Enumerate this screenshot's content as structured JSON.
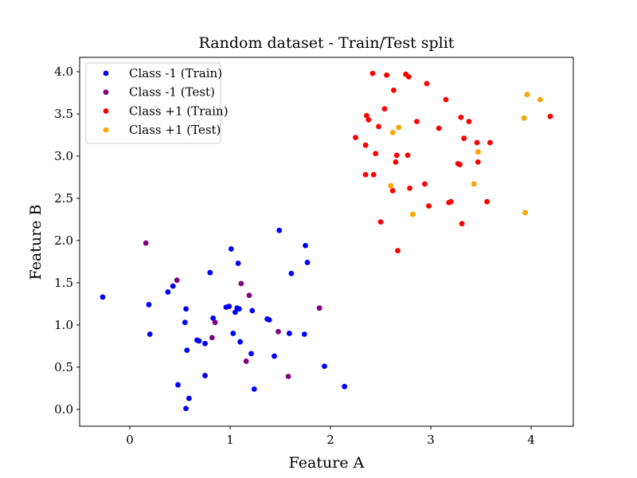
{
  "chart_data": {
    "type": "scatter",
    "title": "Random dataset - Train/Test split",
    "xlabel": "Feature A",
    "ylabel": "Feature B",
    "xlim": [
      -0.5,
      4.42
    ],
    "ylim": [
      -0.2,
      4.17
    ],
    "xticks": [
      0,
      1,
      2,
      3,
      4
    ],
    "xtick_labels": [
      "0",
      "1",
      "2",
      "3",
      "4"
    ],
    "yticks": [
      0.0,
      0.5,
      1.0,
      1.5,
      2.0,
      2.5,
      3.0,
      3.5,
      4.0
    ],
    "ytick_labels": [
      "0.0",
      "0.5",
      "1.0",
      "1.5",
      "2.0",
      "2.5",
      "3.0",
      "3.5",
      "4.0"
    ],
    "grid": false,
    "legend_position": "top-left",
    "series": [
      {
        "name": "Class -1 (Train)",
        "color": "#0000ff",
        "points": [
          [
            -0.27,
            1.33
          ],
          [
            0.19,
            1.24
          ],
          [
            0.2,
            0.89
          ],
          [
            0.38,
            1.39
          ],
          [
            0.43,
            1.46
          ],
          [
            0.48,
            0.29
          ],
          [
            0.55,
            1.03
          ],
          [
            0.56,
            1.19
          ],
          [
            0.56,
            0.01
          ],
          [
            0.57,
            0.7
          ],
          [
            0.59,
            0.13
          ],
          [
            0.67,
            0.82
          ],
          [
            0.69,
            0.81
          ],
          [
            0.75,
            0.78
          ],
          [
            0.75,
            0.4
          ],
          [
            0.8,
            1.62
          ],
          [
            0.83,
            1.08
          ],
          [
            0.96,
            1.21
          ],
          [
            0.99,
            1.22
          ],
          [
            1.01,
            1.9
          ],
          [
            1.03,
            0.9
          ],
          [
            1.05,
            1.15
          ],
          [
            1.07,
            1.2
          ],
          [
            1.08,
            1.73
          ],
          [
            1.09,
            1.19
          ],
          [
            1.1,
            0.8
          ],
          [
            1.21,
            0.66
          ],
          [
            1.22,
            1.17
          ],
          [
            1.24,
            0.24
          ],
          [
            1.37,
            1.07
          ],
          [
            1.39,
            1.06
          ],
          [
            1.44,
            0.63
          ],
          [
            1.49,
            2.12
          ],
          [
            1.59,
            0.9
          ],
          [
            1.61,
            1.61
          ],
          [
            1.74,
            0.89
          ],
          [
            1.75,
            1.94
          ],
          [
            1.77,
            1.74
          ],
          [
            1.94,
            0.51
          ],
          [
            2.14,
            0.27
          ]
        ]
      },
      {
        "name": "Class -1 (Test)",
        "color": "#800080",
        "points": [
          [
            0.16,
            1.97
          ],
          [
            0.47,
            1.53
          ],
          [
            0.82,
            0.85
          ],
          [
            0.85,
            1.03
          ],
          [
            1.11,
            1.49
          ],
          [
            1.16,
            0.57
          ],
          [
            1.19,
            1.35
          ],
          [
            1.48,
            0.92
          ],
          [
            1.58,
            0.39
          ],
          [
            1.89,
            1.2
          ]
        ]
      },
      {
        "name": "Class +1 (Train)",
        "color": "#ff0000",
        "points": [
          [
            2.25,
            3.22
          ],
          [
            2.35,
            2.78
          ],
          [
            2.35,
            3.13
          ],
          [
            2.36,
            3.48
          ],
          [
            2.38,
            3.43
          ],
          [
            2.42,
            3.98
          ],
          [
            2.43,
            2.78
          ],
          [
            2.45,
            3.03
          ],
          [
            2.48,
            3.35
          ],
          [
            2.5,
            2.22
          ],
          [
            2.54,
            3.56
          ],
          [
            2.56,
            3.96
          ],
          [
            2.62,
            2.59
          ],
          [
            2.63,
            3.78
          ],
          [
            2.65,
            2.93
          ],
          [
            2.66,
            3.01
          ],
          [
            2.67,
            1.88
          ],
          [
            2.75,
            3.97
          ],
          [
            2.77,
            3.01
          ],
          [
            2.78,
            3.94
          ],
          [
            2.79,
            2.62
          ],
          [
            2.86,
            3.41
          ],
          [
            2.94,
            2.67
          ],
          [
            2.96,
            3.86
          ],
          [
            2.98,
            2.41
          ],
          [
            3.08,
            3.33
          ],
          [
            3.15,
            3.67
          ],
          [
            3.18,
            2.45
          ],
          [
            3.2,
            2.46
          ],
          [
            3.27,
            2.91
          ],
          [
            3.29,
            2.9
          ],
          [
            3.3,
            3.46
          ],
          [
            3.31,
            2.2
          ],
          [
            3.33,
            3.21
          ],
          [
            3.38,
            3.41
          ],
          [
            3.46,
            3.16
          ],
          [
            3.47,
            2.93
          ],
          [
            3.56,
            2.46
          ],
          [
            3.59,
            3.16
          ],
          [
            4.19,
            3.47
          ]
        ]
      },
      {
        "name": "Class +1 (Test)",
        "color": "#ffa500",
        "points": [
          [
            2.6,
            2.65
          ],
          [
            2.62,
            3.28
          ],
          [
            2.68,
            3.34
          ],
          [
            2.82,
            2.31
          ],
          [
            3.43,
            2.67
          ],
          [
            3.47,
            3.05
          ],
          [
            3.93,
            3.45
          ],
          [
            3.94,
            2.33
          ],
          [
            3.96,
            3.73
          ],
          [
            4.09,
            3.67
          ]
        ]
      }
    ]
  }
}
